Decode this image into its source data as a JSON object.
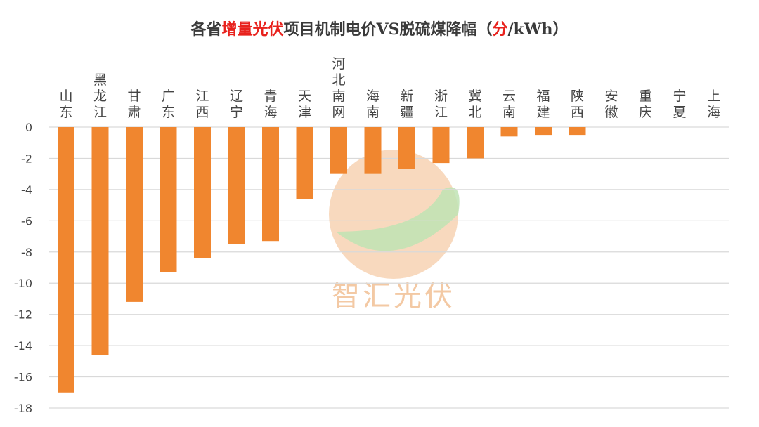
{
  "title": {
    "part1": "各省",
    "highlight1": "增量光伏",
    "part2": "项目机制电价VS脱硫煤降幅（",
    "highlight2": "分",
    "part3": "/kWh）"
  },
  "watermark": {
    "text": "智汇光伏"
  },
  "colors": {
    "bar": "#f0862f",
    "grid": "#d9d9d9",
    "title_highlight": "#e8221d"
  },
  "chart_data": {
    "type": "bar",
    "categories": [
      "山东",
      "黑龙江",
      "甘肃",
      "广东",
      "江西",
      "辽宁",
      "青海",
      "天津",
      "河北南网",
      "海南",
      "新疆",
      "浙江",
      "冀北",
      "云南",
      "福建",
      "陕西",
      "安徽",
      "重庆",
      "宁夏",
      "上海"
    ],
    "values": [
      -17.0,
      -14.6,
      -11.2,
      -9.3,
      -8.4,
      -7.5,
      -7.3,
      -4.6,
      -3.0,
      -3.0,
      -2.7,
      -2.3,
      -2.0,
      -0.6,
      -0.5,
      -0.5,
      0,
      0,
      0,
      0
    ],
    "ylim": [
      -18,
      0
    ],
    "yticks": [
      "0",
      "-2",
      "-4",
      "-6",
      "-8",
      "-10",
      "-12",
      "-14",
      "-16",
      "-18"
    ],
    "grid": true
  }
}
